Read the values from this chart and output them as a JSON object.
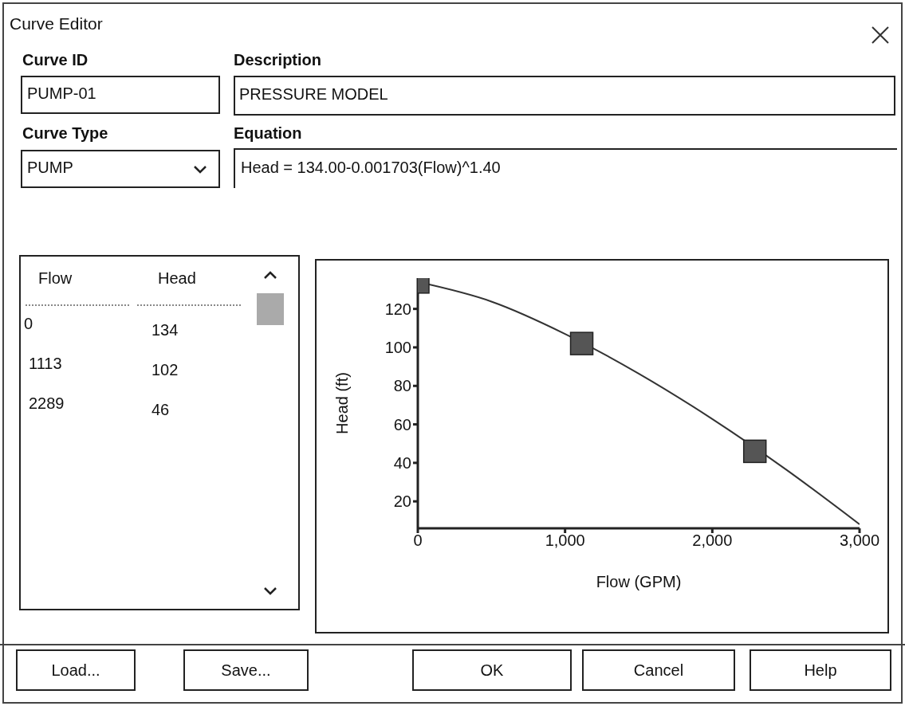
{
  "chart_data": {
    "type": "line",
    "title": "Curve Editor",
    "xlabel": "Flow (GPM)",
    "ylabel": "Head (ft)",
    "xlim": [
      0,
      3000
    ],
    "xticks": [
      0,
      {
        "value": 1000,
        "label": "1,000"
      },
      {
        "value": 2000,
        "label": "2,000"
      },
      {
        "value": 3000,
        "label": "3,000"
      }
    ],
    "ylim": [
      6,
      136
    ],
    "yticks": [
      20,
      40,
      60,
      80,
      100,
      120
    ],
    "series": [
      {
        "type": "line",
        "color": "#333333",
        "marker": "none",
        "line_style": "solid",
        "x": [
          0,
          500,
          1000,
          1500,
          2000,
          2500,
          3000
        ],
        "values": [
          134,
          123.8,
          107,
          86.4,
          62.8,
          36.6,
          8.1
        ]
      },
      {
        "type": "scatter",
        "color": "#555555",
        "marker": "square",
        "x": [
          0,
          1113,
          2289
        ],
        "values": [
          134,
          102,
          46
        ]
      }
    ],
    "annotations": [
      "Curve ID",
      "PUMP-01",
      "Description",
      "PRESSURE MODEL",
      "Curve Type",
      "PUMP",
      "Equation",
      "Head = 134.00-0.001703(Flow)^1.40",
      "Flow",
      "Head",
      "Load...",
      "Save...",
      "OK",
      "Cancel",
      "Help",
      "0",
      "134",
      "1113",
      "102",
      "2289",
      "46"
    ]
  }
}
